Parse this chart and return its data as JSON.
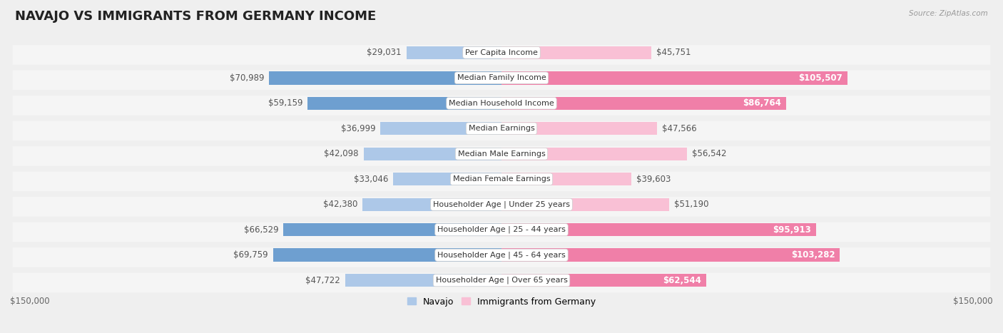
{
  "title": "NAVAJO VS IMMIGRANTS FROM GERMANY INCOME",
  "source": "Source: ZipAtlas.com",
  "categories": [
    "Per Capita Income",
    "Median Family Income",
    "Median Household Income",
    "Median Earnings",
    "Median Male Earnings",
    "Median Female Earnings",
    "Householder Age | Under 25 years",
    "Householder Age | 25 - 44 years",
    "Householder Age | 45 - 64 years",
    "Householder Age | Over 65 years"
  ],
  "navajo_values": [
    29031,
    70989,
    59159,
    36999,
    42098,
    33046,
    42380,
    66529,
    69759,
    47722
  ],
  "germany_values": [
    45751,
    105507,
    86764,
    47566,
    56542,
    39603,
    51190,
    95913,
    103282,
    62544
  ],
  "navajo_color_light": "#ADC8E8",
  "navajo_color_dark": "#6E9FD0",
  "germany_color_light": "#F9C0D5",
  "germany_color_dark": "#F07FA8",
  "max_value": 150000,
  "x_label_left": "$150,000",
  "x_label_right": "$150,000",
  "bg_color": "#EFEFEF",
  "row_bg_color": "#F5F5F5",
  "row_sep_color": "#DDDDDD",
  "legend_navajo": "Navajo",
  "legend_germany": "Immigrants from Germany",
  "title_fontsize": 13,
  "label_fontsize": 8.5,
  "cat_fontsize": 8.0
}
